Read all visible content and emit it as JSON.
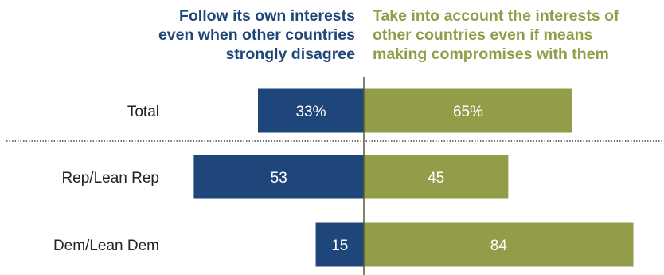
{
  "headers": {
    "left": [
      "Follow its own interests",
      "even when other countries",
      "strongly disagree"
    ],
    "right": [
      "Take into account the interests of",
      "other countries even if means",
      "making compromises with them"
    ]
  },
  "colors": {
    "left_series": "#1f467a",
    "right_series": "#939c48",
    "axis": "#5a5a3a",
    "separator": "#444444",
    "label_text": "#222222",
    "value_text": "#ffffff"
  },
  "chart_data": {
    "type": "bar",
    "orientation": "horizontal-diverging",
    "categories": [
      "Total",
      "Rep/Lean Rep",
      "Dem/Lean Dem"
    ],
    "series": [
      {
        "name": "Follow its own interests even when other countries strongly disagree",
        "values": [
          33,
          53,
          15
        ],
        "labels": [
          "33%",
          "53",
          "15"
        ]
      },
      {
        "name": "Take into account the interests of other countries even if means making compromises with them",
        "values": [
          65,
          45,
          84
        ],
        "labels": [
          "65%",
          "45",
          "84"
        ]
      }
    ],
    "separator_after": "Total",
    "xlabel": "",
    "ylabel": ""
  }
}
